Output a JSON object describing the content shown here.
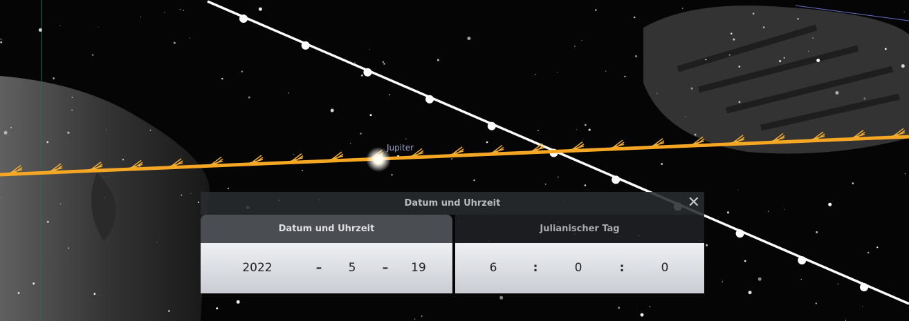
{
  "sky": {
    "object_label": "Jupiter"
  },
  "dialog": {
    "title": "Datum und Uhrzeit",
    "tabs": [
      "Datum und Uhrzeit",
      "Julianischer Tag"
    ],
    "date": {
      "year": 2022,
      "month": 5,
      "day": 19,
      "separator": "–"
    },
    "time": {
      "hour": 6,
      "minute": 0,
      "second": 0,
      "separator": ":"
    }
  }
}
